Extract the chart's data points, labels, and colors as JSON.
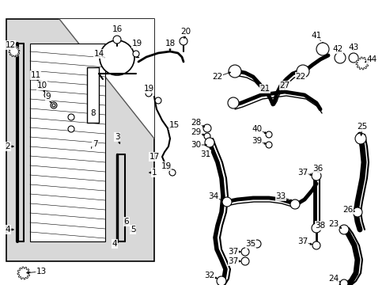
{
  "background_color": "#ffffff",
  "fig_width": 4.89,
  "fig_height": 3.6,
  "dpi": 100,
  "font_size": 7.5
}
